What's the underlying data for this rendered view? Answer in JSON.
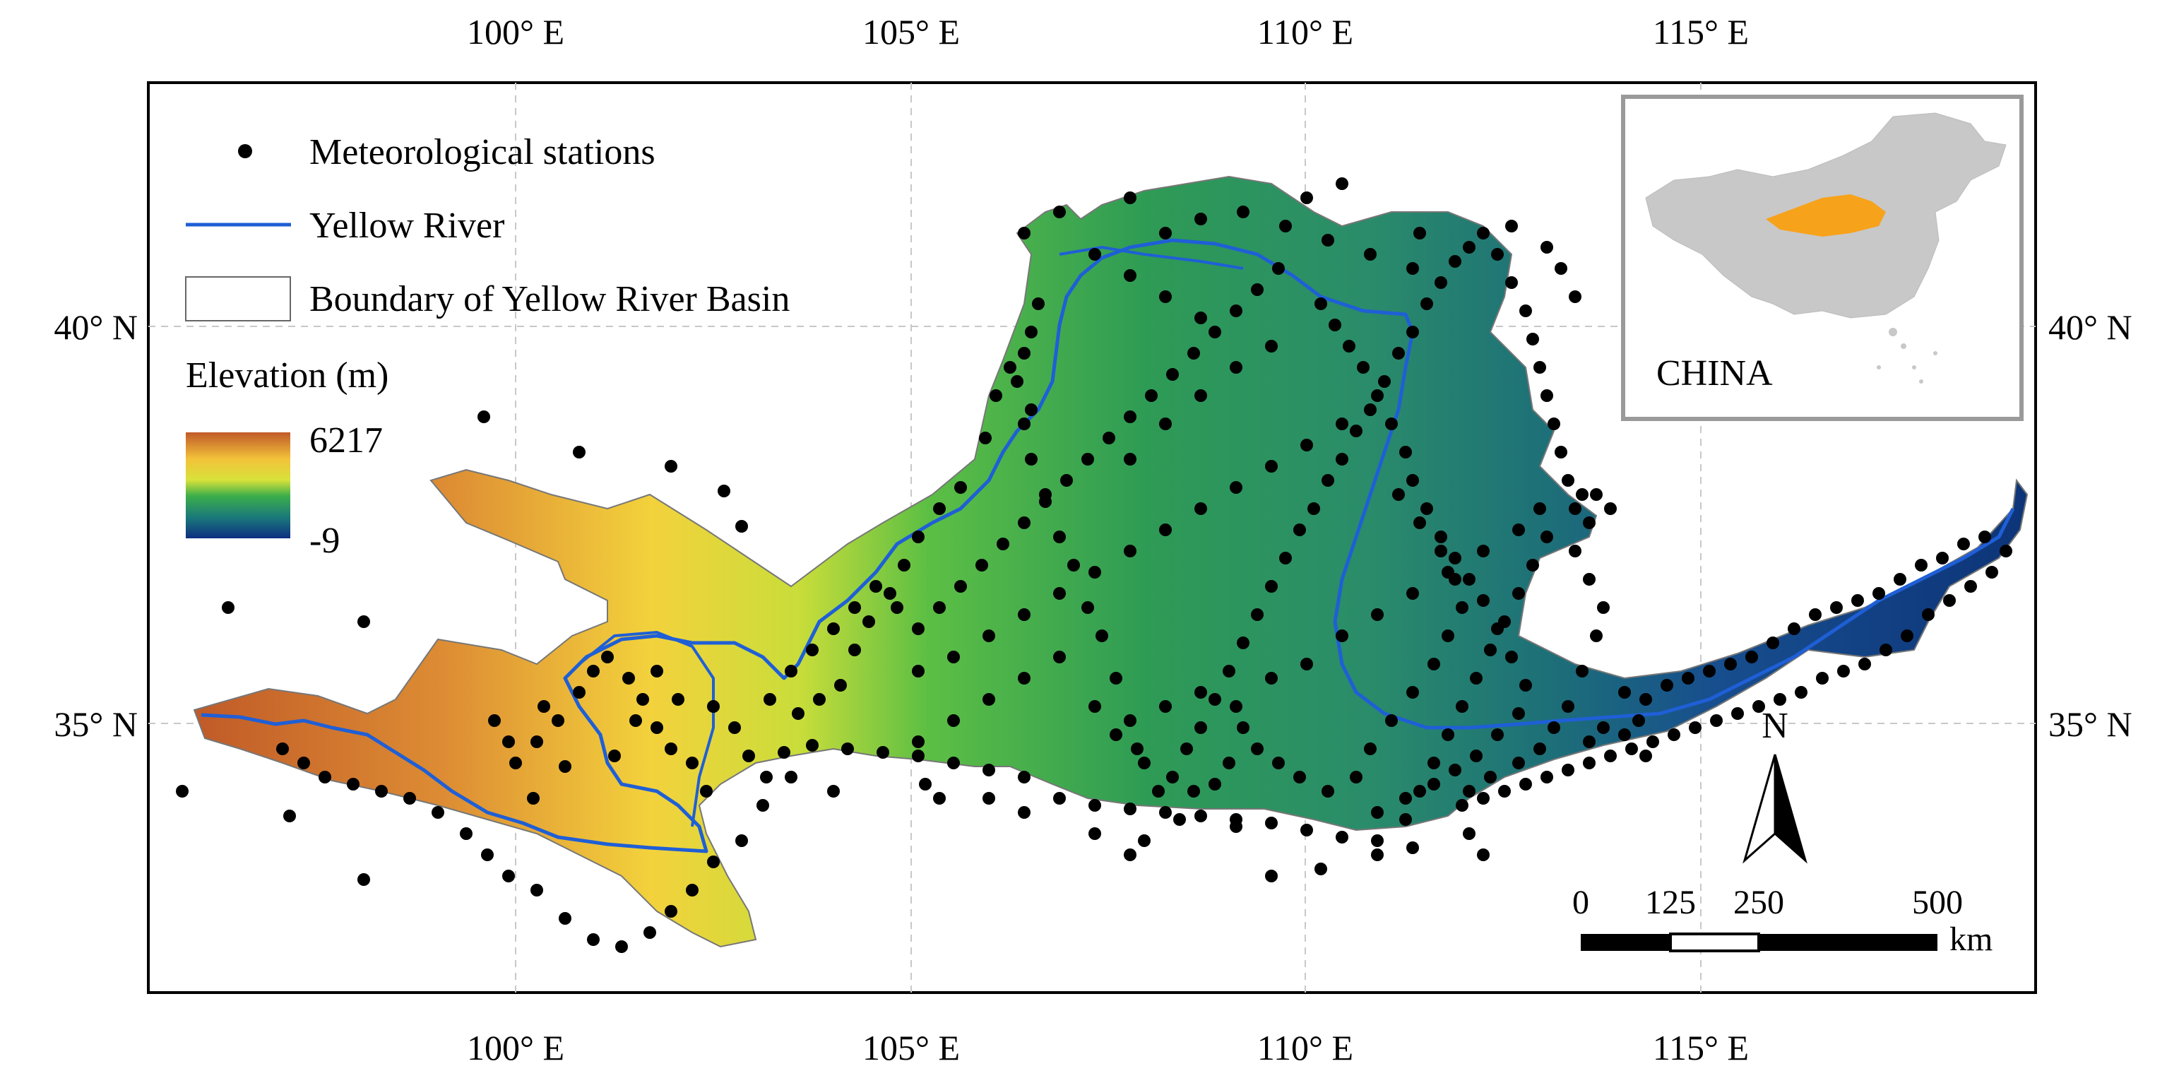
{
  "longitude_ticks": [
    "100° E",
    "105° E",
    "110° E",
    "115° E"
  ],
  "latitude_ticks": [
    "40° N",
    "35° N"
  ],
  "legend": {
    "stations_label": "Meteorological stations",
    "river_label": "Yellow River",
    "boundary_label": "Boundary of Yellow River Basin",
    "elevation_title": "Elevation (m)",
    "elevation_max": "6217",
    "elevation_min": "-9"
  },
  "inset": {
    "label": "CHINA"
  },
  "north_arrow": {
    "label": "N"
  },
  "scale_bar": {
    "ticks": [
      "0",
      "125",
      "250",
      "500"
    ],
    "unit": "km"
  },
  "colors": {
    "river": "#1f5fd6",
    "station": "#000000",
    "highland": "#c8662a",
    "mid": "#f3d23c",
    "green": "#3aa64a",
    "lowland": "#0e3a86",
    "inset_land": "#c8c8c8",
    "inset_basin": "#f7a21b"
  }
}
